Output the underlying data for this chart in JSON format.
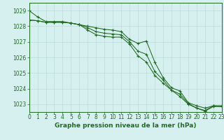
{
  "hours": [
    0,
    1,
    2,
    3,
    4,
    5,
    6,
    7,
    8,
    9,
    10,
    11,
    12,
    13,
    14,
    15,
    16,
    17,
    18,
    19,
    20,
    21,
    22,
    23
  ],
  "line1": [
    1029.0,
    1028.6,
    1028.3,
    1028.3,
    1028.3,
    1028.2,
    1028.1,
    1028.0,
    1027.9,
    1027.8,
    1027.75,
    1027.65,
    1027.15,
    1026.9,
    1027.05,
    1025.7,
    1024.7,
    1024.05,
    1023.85,
    1023.1,
    1022.9,
    1022.75,
    1022.9,
    1022.9
  ],
  "line2": [
    1028.4,
    1028.35,
    1028.25,
    1028.25,
    1028.25,
    1028.2,
    1028.1,
    1027.9,
    1027.65,
    1027.55,
    1027.5,
    1027.45,
    1027.0,
    1026.4,
    1026.2,
    1025.1,
    1024.55,
    1023.9,
    1023.65,
    1023.05,
    1022.75,
    1022.6,
    1022.9,
    1022.85
  ],
  "line3": [
    1028.4,
    1028.35,
    1028.25,
    1028.25,
    1028.25,
    1028.2,
    1028.1,
    1027.75,
    1027.45,
    1027.35,
    1027.3,
    1027.3,
    1026.85,
    1026.1,
    1025.7,
    1024.85,
    1024.35,
    1023.9,
    1023.5,
    1023.0,
    1022.75,
    1022.55,
    1022.85,
    1022.85
  ],
  "ylim_min": 1022.5,
  "ylim_max": 1029.5,
  "yticks": [
    1023,
    1024,
    1025,
    1026,
    1027,
    1028,
    1029
  ],
  "xticks": [
    0,
    1,
    2,
    3,
    4,
    5,
    6,
    7,
    8,
    9,
    10,
    11,
    12,
    13,
    14,
    15,
    16,
    17,
    18,
    19,
    20,
    21,
    22,
    23
  ],
  "line_color": "#1f6b1f",
  "bg_color": "#d6f0f0",
  "grid_color": "#b8ddd8",
  "xlabel": "Graphe pression niveau de la mer (hPa)",
  "xlabel_color": "#1f6b1f",
  "xlabel_fontsize": 6.5,
  "tick_fontsize": 5.5,
  "marker": "+",
  "marker_size": 3,
  "linewidth": 0.75
}
